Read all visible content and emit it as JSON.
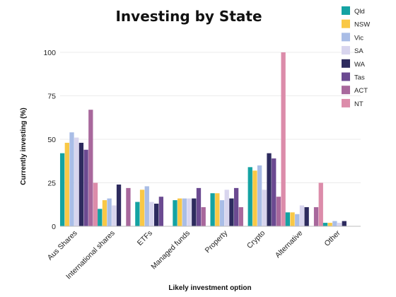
{
  "chart_data": {
    "type": "bar",
    "title": "Investing by State",
    "xlabel": "Likely investment option",
    "ylabel": "Currently investing  (%)",
    "ylim": [
      0,
      100
    ],
    "yticks": [
      0,
      25,
      50,
      75,
      100
    ],
    "grid": true,
    "legend_position": "right",
    "categories": [
      "Aus Shares",
      "International shares",
      "ETFs",
      "Managed funds",
      "Property",
      "Crypto",
      "Alternative",
      "Other"
    ],
    "series": [
      {
        "name": "Qld",
        "color": "#14a3a3",
        "values": [
          42,
          10,
          14,
          15,
          19,
          34,
          8,
          2
        ]
      },
      {
        "name": "NSW",
        "color": "#f9c846",
        "values": [
          48,
          15,
          21,
          16,
          19,
          32,
          8,
          2
        ]
      },
      {
        "name": "Vic",
        "color": "#a9bde6",
        "values": [
          54,
          16,
          23,
          16,
          15,
          35,
          7,
          3
        ]
      },
      {
        "name": "SA",
        "color": "#d8d5ee",
        "values": [
          51,
          12,
          14,
          16,
          21,
          21,
          12,
          2
        ]
      },
      {
        "name": "WA",
        "color": "#2d2b5e",
        "values": [
          48,
          24,
          13,
          16,
          16,
          42,
          11,
          3
        ]
      },
      {
        "name": "Tas",
        "color": "#6b4a91",
        "values": [
          44,
          0,
          17,
          22,
          22,
          39,
          0,
          0
        ]
      },
      {
        "name": "ACT",
        "color": "#a8689c",
        "values": [
          67,
          22,
          0,
          11,
          11,
          17,
          11,
          0
        ]
      },
      {
        "name": "NT",
        "color": "#dc8caa",
        "values": [
          25,
          0,
          0,
          0,
          0,
          100,
          25,
          0
        ]
      }
    ]
  }
}
